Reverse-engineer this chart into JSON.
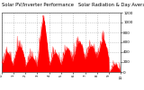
{
  "title": "Solar PV/Inverter Performance   Solar Radiation & Day Average per Minute",
  "title_fontsize": 3.8,
  "background_color": "#ffffff",
  "plot_bg_color": "#ffffff",
  "bar_color": "#ff0000",
  "grid_color": "#aaaaaa",
  "ylim": [
    0,
    1200
  ],
  "yticks": [
    0,
    200,
    400,
    600,
    800,
    1000,
    1200
  ],
  "ylabel_fontsize": 3.0,
  "xlabel_fontsize": 2.8,
  "num_points": 500,
  "days": 10,
  "day_peaks": [
    380,
    520,
    300,
    1050,
    380,
    460,
    600,
    520,
    640,
    150
  ],
  "day_widths": [
    0.32,
    0.38,
    0.35,
    0.28,
    0.34,
    0.36,
    0.38,
    0.4,
    0.36,
    0.22
  ],
  "spike_day": 3,
  "spike_extra": 50
}
